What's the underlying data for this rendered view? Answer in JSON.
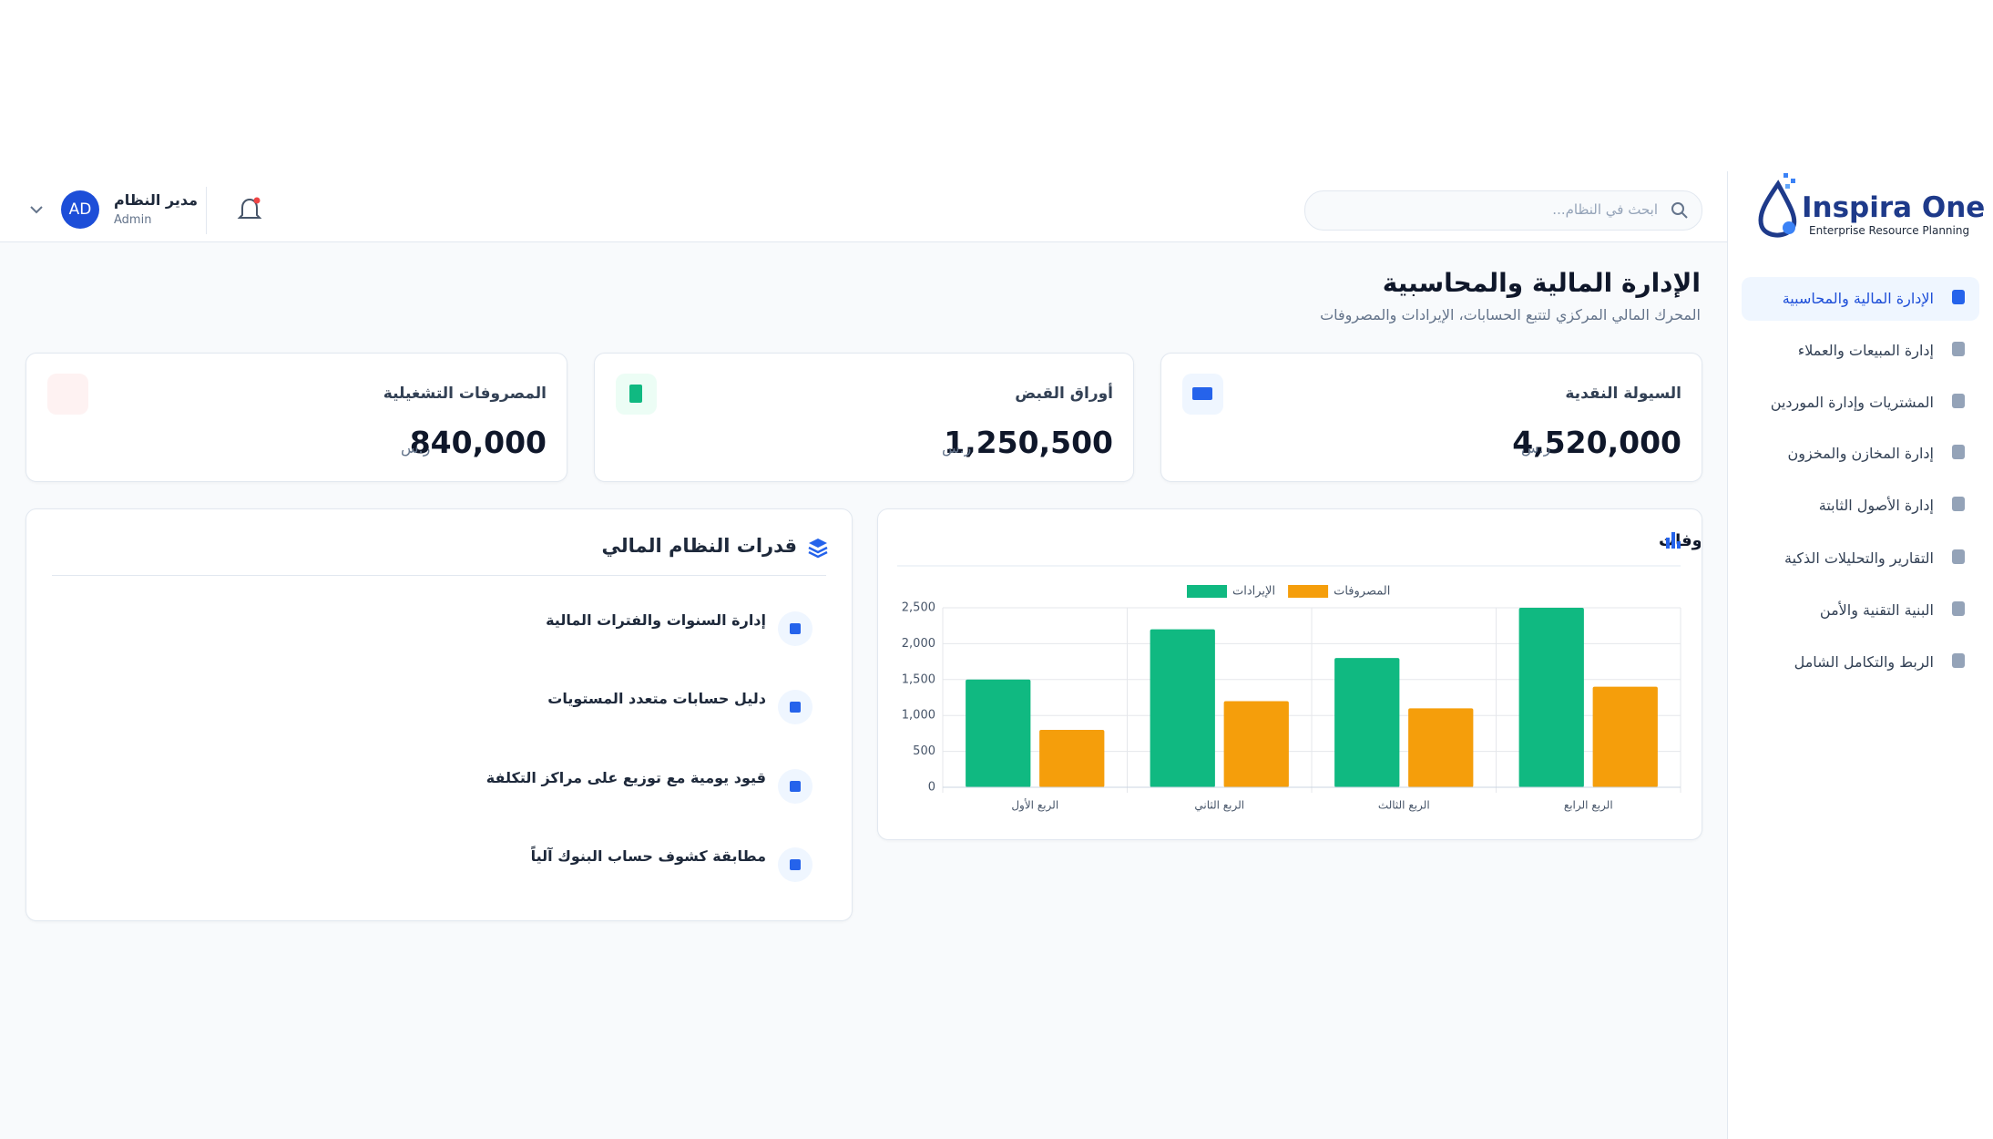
{
  "sidebar": {
    "brand": "Inspira One",
    "tagline": "Enterprise Resource Planning",
    "nav": [
      "الإدارة المالية والمحاسبية",
      "إدارة المبيعات والعملاء",
      "المشتريات وإدارة الموردين",
      "إدارة المخازن والمخزون",
      "إدارة الأصول الثابتة",
      "التقارير والتحليلات الذكية",
      "البنية التقنية والأمن",
      "الربط والتكامل الشامل"
    ]
  },
  "header": {
    "search_placeholder": "ابحث في النظام...",
    "user": {
      "name": "مدير النظام",
      "role": "Admin",
      "initials": "AD"
    }
  },
  "page": {
    "title": "الإدارة المالية والمحاسبية",
    "subtitle": "المحرك المالي المركزي لتتبع الحسابات، الإيرادات والمصروفات"
  },
  "kpis": [
    {
      "label": "السيولة النقدية",
      "value": "4,520,000",
      "currency": "ر.س"
    },
    {
      "label": "أوراق القبض",
      "value": "1,250,500",
      "currency": "ر.س"
    },
    {
      "label": "المصروفات التشغيلية",
      "value": "840,000",
      "currency": "ر.س"
    }
  ],
  "capabilities": {
    "title": "قدرات النظام المالي",
    "items": [
      "إدارة السنوات والفترات المالية",
      "دليل حسابات متعدد المستويات",
      "قيود يومية مع توزيع على مراكز التكلفة",
      "مطابقة كشوف حساب البنوك آلياً"
    ]
  },
  "chart_data": {
    "type": "bar",
    "title": "تحليل الإيرادات والمصروفات",
    "categories": [
      "الربع الأول",
      "الربع الثاني",
      "الربع الثالث",
      "الربع الرابع"
    ],
    "series": [
      {
        "name": "الإيرادات",
        "color": "#10b981",
        "values": [
          1500,
          2200,
          1800,
          2500
        ]
      },
      {
        "name": "المصروفات",
        "color": "#f59e0b",
        "values": [
          800,
          1200,
          1100,
          1400
        ]
      }
    ],
    "ylim": [
      0,
      2500
    ],
    "yticks": [
      0,
      500,
      {
        "value": 1000,
        "label": "1,000"
      },
      {
        "value": 1500,
        "label": "1,500"
      },
      {
        "value": 2000,
        "label": "2,000"
      },
      {
        "value": 2500,
        "label": "2,500"
      }
    ],
    "grid": true
  }
}
